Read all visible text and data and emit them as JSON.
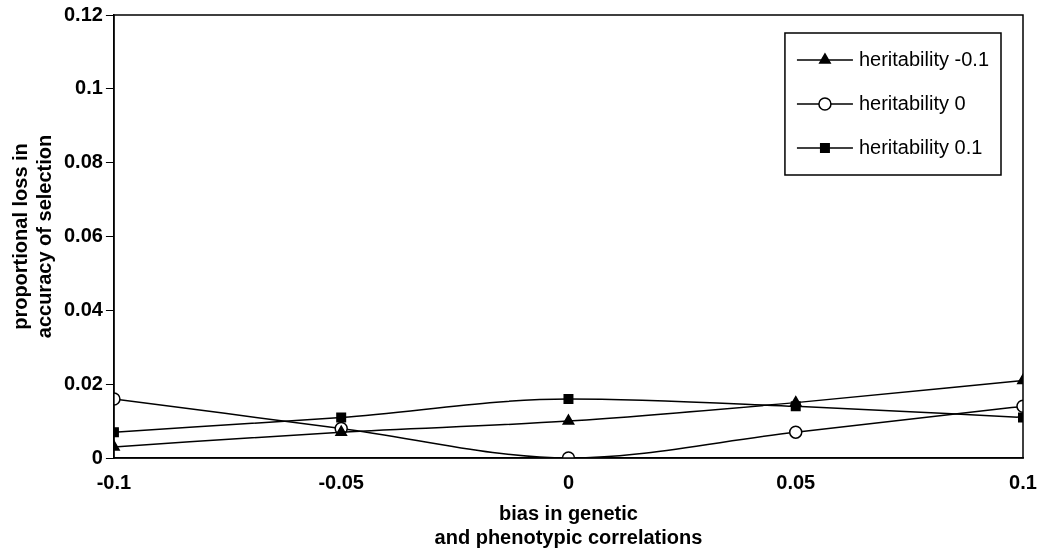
{
  "chart_data": {
    "type": "line",
    "xlabel": "bias in genetic\nand phenotypic correlations",
    "ylabel": "proportional loss in\naccuracy of selection",
    "x": [
      -0.1,
      -0.05,
      0,
      0.05,
      0.1
    ],
    "series": [
      {
        "name": "heritability -0.1",
        "color": "#000000",
        "marker": "triangle",
        "values": [
          0.003,
          0.007,
          0.01,
          0.015,
          0.021
        ]
      },
      {
        "name": "heritability 0",
        "color": "#000000",
        "marker": "circle",
        "values": [
          0.016,
          0.008,
          0.0,
          0.007,
          0.014
        ]
      },
      {
        "name": "heritability 0.1",
        "color": "#000000",
        "marker": "square",
        "values": [
          0.007,
          0.011,
          0.016,
          0.014,
          0.011
        ]
      }
    ],
    "xlim": [
      -0.1,
      0.1
    ],
    "xticks": [
      -0.1,
      -0.05,
      0,
      0.05,
      0.1
    ],
    "ylim": [
      0,
      0.12
    ],
    "yticks": [
      0,
      0.02,
      0.04,
      0.06,
      0.08,
      0.1,
      0.12
    ],
    "grid": false,
    "legend": "top right",
    "line_style": "solid"
  }
}
